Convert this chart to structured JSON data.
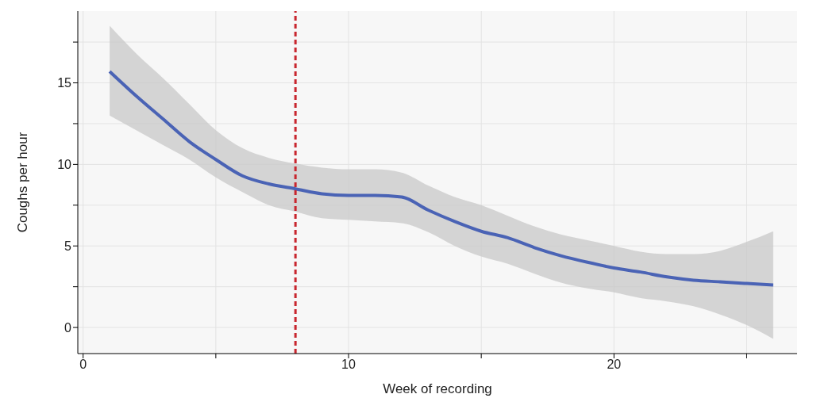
{
  "chart_data": {
    "type": "line",
    "xlabel": "Week of recording",
    "ylabel": "Coughs per hour",
    "x": [
      1,
      2,
      3,
      4,
      5,
      6,
      7,
      8,
      9,
      10,
      11,
      12,
      13,
      14,
      15,
      16,
      17,
      18,
      19,
      20,
      21,
      22,
      23,
      24,
      25,
      26
    ],
    "series": [
      {
        "color": "#4a63b5",
        "values": [
          15.7,
          14.2,
          12.8,
          11.4,
          10.3,
          9.3,
          8.8,
          8.5,
          8.2,
          8.1,
          8.1,
          8.0,
          7.2,
          6.5,
          5.9,
          5.5,
          4.9,
          4.4,
          4.0,
          3.65,
          3.4,
          3.1,
          2.9,
          2.8,
          2.7,
          2.6
        ],
        "lower": [
          13.0,
          12.1,
          11.2,
          10.3,
          9.2,
          8.3,
          7.5,
          7.1,
          6.7,
          6.6,
          6.5,
          6.4,
          5.85,
          5.0,
          4.35,
          3.9,
          3.3,
          2.75,
          2.4,
          2.15,
          1.8,
          1.6,
          1.3,
          0.8,
          0.15,
          -0.7
        ],
        "upper": [
          18.5,
          16.8,
          15.3,
          13.7,
          12.1,
          11.0,
          10.4,
          10.05,
          9.8,
          9.7,
          9.7,
          9.5,
          8.7,
          8.0,
          7.5,
          6.85,
          6.2,
          5.7,
          5.35,
          5.0,
          4.65,
          4.5,
          4.5,
          4.7,
          5.25,
          5.9
        ]
      }
    ],
    "xlim": [
      -0.2,
      26.9
    ],
    "ylim": [
      -1.6,
      19.4
    ],
    "xticks": [
      0,
      {
        "value": 5,
        "label": null
      },
      10,
      {
        "value": 15,
        "label": null
      },
      20,
      {
        "value": 25,
        "label": null
      }
    ],
    "yticks": [
      0,
      {
        "value": 2.5,
        "label": null
      },
      5,
      {
        "value": 7.5,
        "label": null
      },
      10,
      {
        "value": 12.5,
        "label": null
      },
      15,
      {
        "value": 17.5,
        "label": null
      }
    ],
    "grid": true,
    "ref_lines": [
      {
        "axis": "x",
        "value": 8,
        "color": "#c8262e",
        "line_style": "dashed"
      }
    ]
  }
}
